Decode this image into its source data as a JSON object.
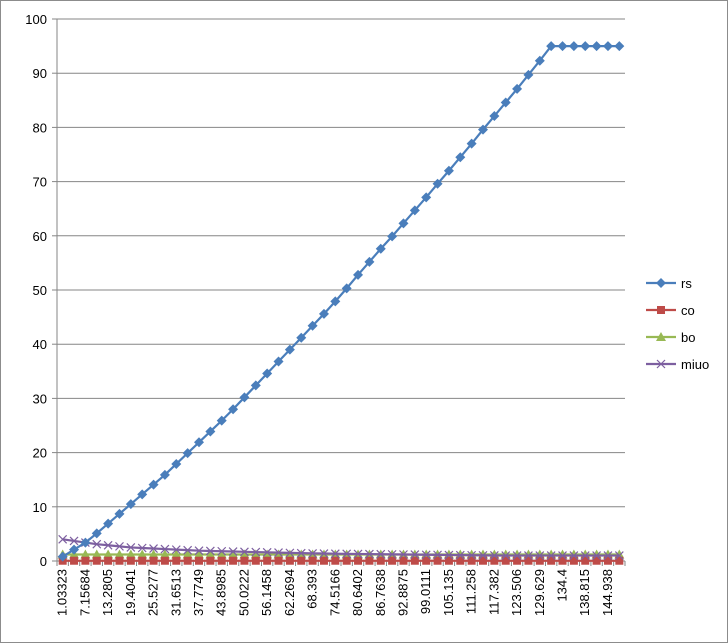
{
  "chart_data": {
    "type": "line",
    "title": "",
    "xlabel": "",
    "ylabel": "",
    "ylim": [
      0,
      100
    ],
    "yticks": [
      0,
      10,
      20,
      30,
      40,
      50,
      60,
      70,
      80,
      90,
      100
    ],
    "grid": "horizontal",
    "legend_position": "right",
    "x_tick_labels": [
      "1.03323",
      "7.15684",
      "13.2805",
      "19.4041",
      "25.5277",
      "31.6513",
      "37.7749",
      "43.8985",
      "50.0222",
      "56.1458",
      "62.2694",
      "68.393",
      "74.5166",
      "80.6402",
      "86.7638",
      "92.8875",
      "99.0111",
      "105.135",
      "111.258",
      "117.382",
      "123.506",
      "129.629",
      "134.4",
      "138.815",
      "144.938"
    ],
    "point_count": 50,
    "series": [
      {
        "name": "rs",
        "color": "#4a7ebb",
        "marker": "diamond",
        "values": [
          0.8,
          2.1,
          3.4,
          5.1,
          6.9,
          8.7,
          10.5,
          12.3,
          14.1,
          15.9,
          17.9,
          19.9,
          21.9,
          23.9,
          25.9,
          28.0,
          30.2,
          32.4,
          34.6,
          36.8,
          39.0,
          41.2,
          43.4,
          45.6,
          47.9,
          50.3,
          52.8,
          55.2,
          57.6,
          59.9,
          62.3,
          64.7,
          67.1,
          69.6,
          72.0,
          74.5,
          77.0,
          79.6,
          82.1,
          84.6,
          87.1,
          89.7,
          92.3,
          95.0,
          95.0,
          95.0,
          95.0,
          95.0,
          95.0,
          95.0
        ]
      },
      {
        "name": "co",
        "color": "#be4b48",
        "marker": "square",
        "values": [
          0.05,
          0.05,
          0.05,
          0.05,
          0.05,
          0.05,
          0.05,
          0.05,
          0.05,
          0.05,
          0.05,
          0.05,
          0.05,
          0.05,
          0.05,
          0.05,
          0.05,
          0.05,
          0.05,
          0.05,
          0.05,
          0.05,
          0.05,
          0.05,
          0.05,
          0.05,
          0.05,
          0.05,
          0.05,
          0.05,
          0.05,
          0.05,
          0.05,
          0.05,
          0.05,
          0.05,
          0.05,
          0.05,
          0.05,
          0.05,
          0.05,
          0.05,
          0.05,
          0.05,
          0.05,
          0.05,
          0.05,
          0.05,
          0.05,
          0.05
        ]
      },
      {
        "name": "bo",
        "color": "#98b954",
        "marker": "triangle",
        "values": [
          1.2,
          1.2,
          1.2,
          1.2,
          1.2,
          1.2,
          1.2,
          1.2,
          1.2,
          1.2,
          1.2,
          1.2,
          1.2,
          1.2,
          1.2,
          1.2,
          1.2,
          1.2,
          1.2,
          1.2,
          1.2,
          1.2,
          1.2,
          1.2,
          1.2,
          1.2,
          1.2,
          1.2,
          1.2,
          1.2,
          1.2,
          1.2,
          1.2,
          1.2,
          1.2,
          1.2,
          1.2,
          1.2,
          1.2,
          1.2,
          1.2,
          1.2,
          1.2,
          1.2,
          1.2,
          1.2,
          1.2,
          1.2,
          1.2,
          1.2
        ]
      },
      {
        "name": "miuo",
        "color": "#7d5fa0",
        "marker": "x",
        "values": [
          4.0,
          3.7,
          3.4,
          3.1,
          2.9,
          2.7,
          2.5,
          2.4,
          2.3,
          2.2,
          2.1,
          2.0,
          1.9,
          1.85,
          1.8,
          1.75,
          1.7,
          1.65,
          1.6,
          1.55,
          1.5,
          1.45,
          1.4,
          1.38,
          1.35,
          1.32,
          1.3,
          1.28,
          1.25,
          1.22,
          1.2,
          1.18,
          1.15,
          1.13,
          1.1,
          1.08,
          1.06,
          1.04,
          1.02,
          1.0,
          1.0,
          1.0,
          1.0,
          1.0,
          1.0,
          1.0,
          1.0,
          1.0,
          1.0,
          1.0
        ]
      }
    ]
  }
}
